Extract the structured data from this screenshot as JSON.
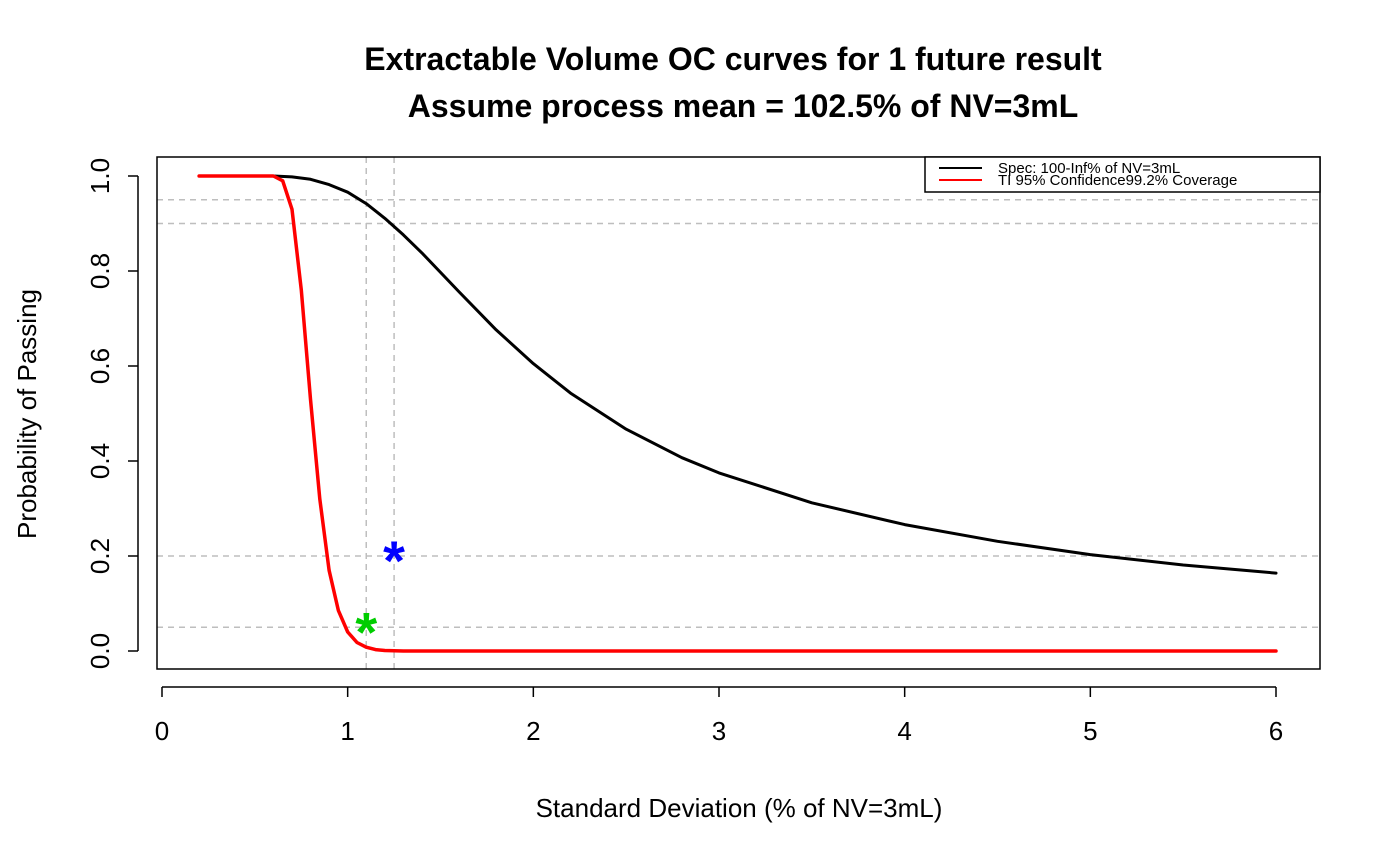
{
  "chart_data": {
    "type": "line",
    "title": "Extractable Volume OC curves for 1 future result",
    "subtitle": "Assume process mean = 102.5% of NV=3mL",
    "xlabel": "Standard Deviation (% of NV=3mL)",
    "ylabel": "Probability of Passing",
    "xlim": [
      0,
      6
    ],
    "ylim": [
      0,
      1
    ],
    "x_ticks": [
      "0",
      "1",
      "2",
      "3",
      "4",
      "5",
      "6"
    ],
    "y_ticks": [
      "0.0",
      "0.2",
      "0.4",
      "0.6",
      "0.8",
      "1.0"
    ],
    "grid": false,
    "legend_position": "top-right",
    "series": [
      {
        "name": "Spec: 100-Inf% of NV=3mL",
        "color": "#000000",
        "x": [
          0.2,
          0.4,
          0.6,
          0.7,
          0.8,
          0.9,
          1.0,
          1.1,
          1.2,
          1.3,
          1.4,
          1.5,
          1.6,
          1.8,
          2.0,
          2.2,
          2.5,
          2.8,
          3.0,
          3.5,
          4.0,
          4.5,
          5.0,
          5.5,
          6.0
        ],
        "y": [
          1.0,
          1.0,
          1.0,
          0.998,
          0.993,
          0.982,
          0.966,
          0.942,
          0.911,
          0.876,
          0.838,
          0.797,
          0.756,
          0.676,
          0.605,
          0.543,
          0.467,
          0.407,
          0.375,
          0.312,
          0.266,
          0.231,
          0.203,
          0.181,
          0.164
        ]
      },
      {
        "name": "TI 95% Confidence99.2% Coverage",
        "color": "#ff0000",
        "x": [
          0.2,
          0.4,
          0.6,
          0.65,
          0.7,
          0.75,
          0.8,
          0.85,
          0.9,
          0.95,
          1.0,
          1.05,
          1.1,
          1.15,
          1.2,
          1.3,
          1.4,
          2.0,
          3.0,
          4.0,
          5.0,
          6.0
        ],
        "y": [
          1.0,
          1.0,
          1.0,
          0.99,
          0.93,
          0.76,
          0.53,
          0.32,
          0.17,
          0.085,
          0.04,
          0.018,
          0.008,
          0.003,
          0.001,
          0.0,
          0.0,
          0.0,
          0.0,
          0.0,
          0.0,
          0.0
        ]
      }
    ],
    "reference_lines": {
      "horizontal": [
        0.05,
        0.2,
        0.9,
        0.95
      ],
      "vertical": [
        1.1,
        1.25
      ],
      "color": "#bebebe",
      "style": "dashed"
    },
    "markers": [
      {
        "x": 1.25,
        "y": 0.2,
        "symbol": "*",
        "color": "#0000ff"
      },
      {
        "x": 1.1,
        "y": 0.05,
        "symbol": "*",
        "color": "#00cd00"
      }
    ]
  }
}
